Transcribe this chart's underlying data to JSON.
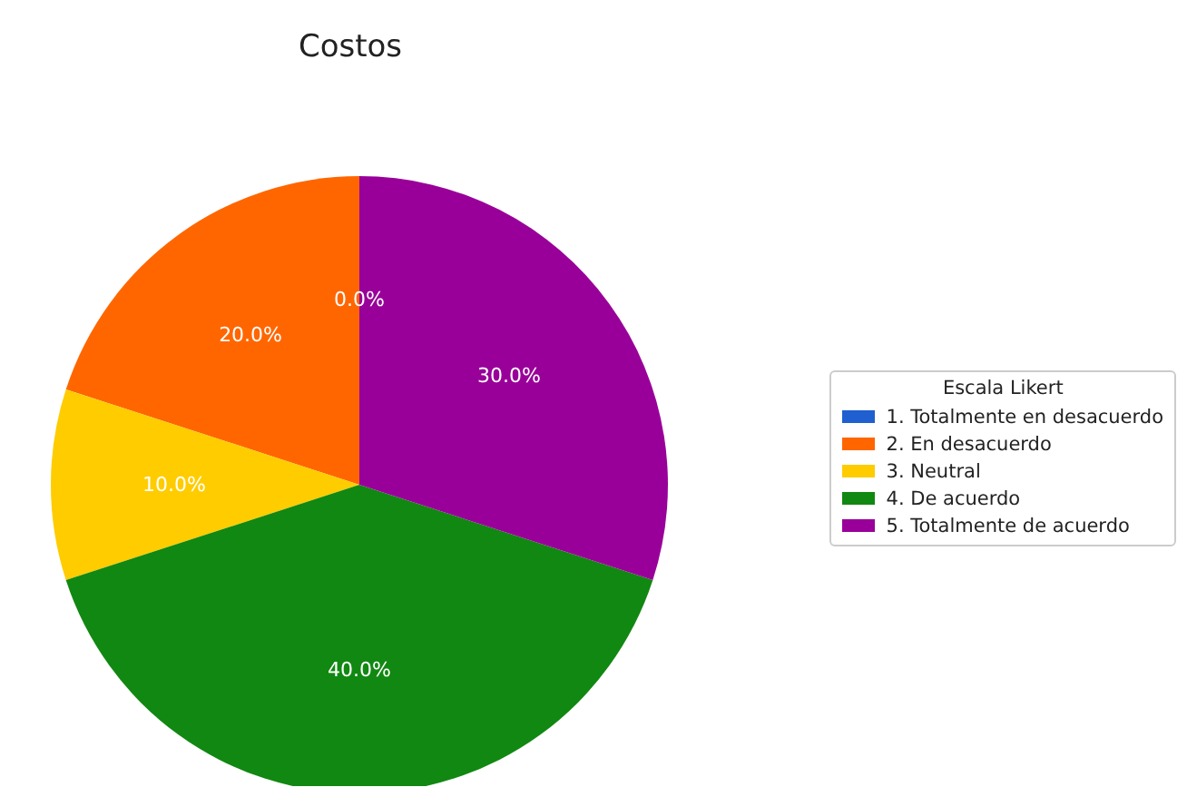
{
  "chart_data": {
    "type": "pie",
    "title": "Costos",
    "legend_title": "Escala Likert",
    "legend": "right",
    "categories": [
      "1. Totalmente en desacuerdo",
      "2. En desacuerdo",
      "3. Neutral",
      "4. De acuerdo",
      "5. Totalmente de acuerdo"
    ],
    "values": [
      0,
      20,
      10,
      40,
      30
    ],
    "colors": [
      "#1f5fd0",
      "#ff6600",
      "#ffcc00",
      "#118811",
      "#990099"
    ],
    "value_labels": [
      "0.0%",
      "20.0%",
      "10.0%",
      "40.0%",
      "30.0%"
    ]
  }
}
